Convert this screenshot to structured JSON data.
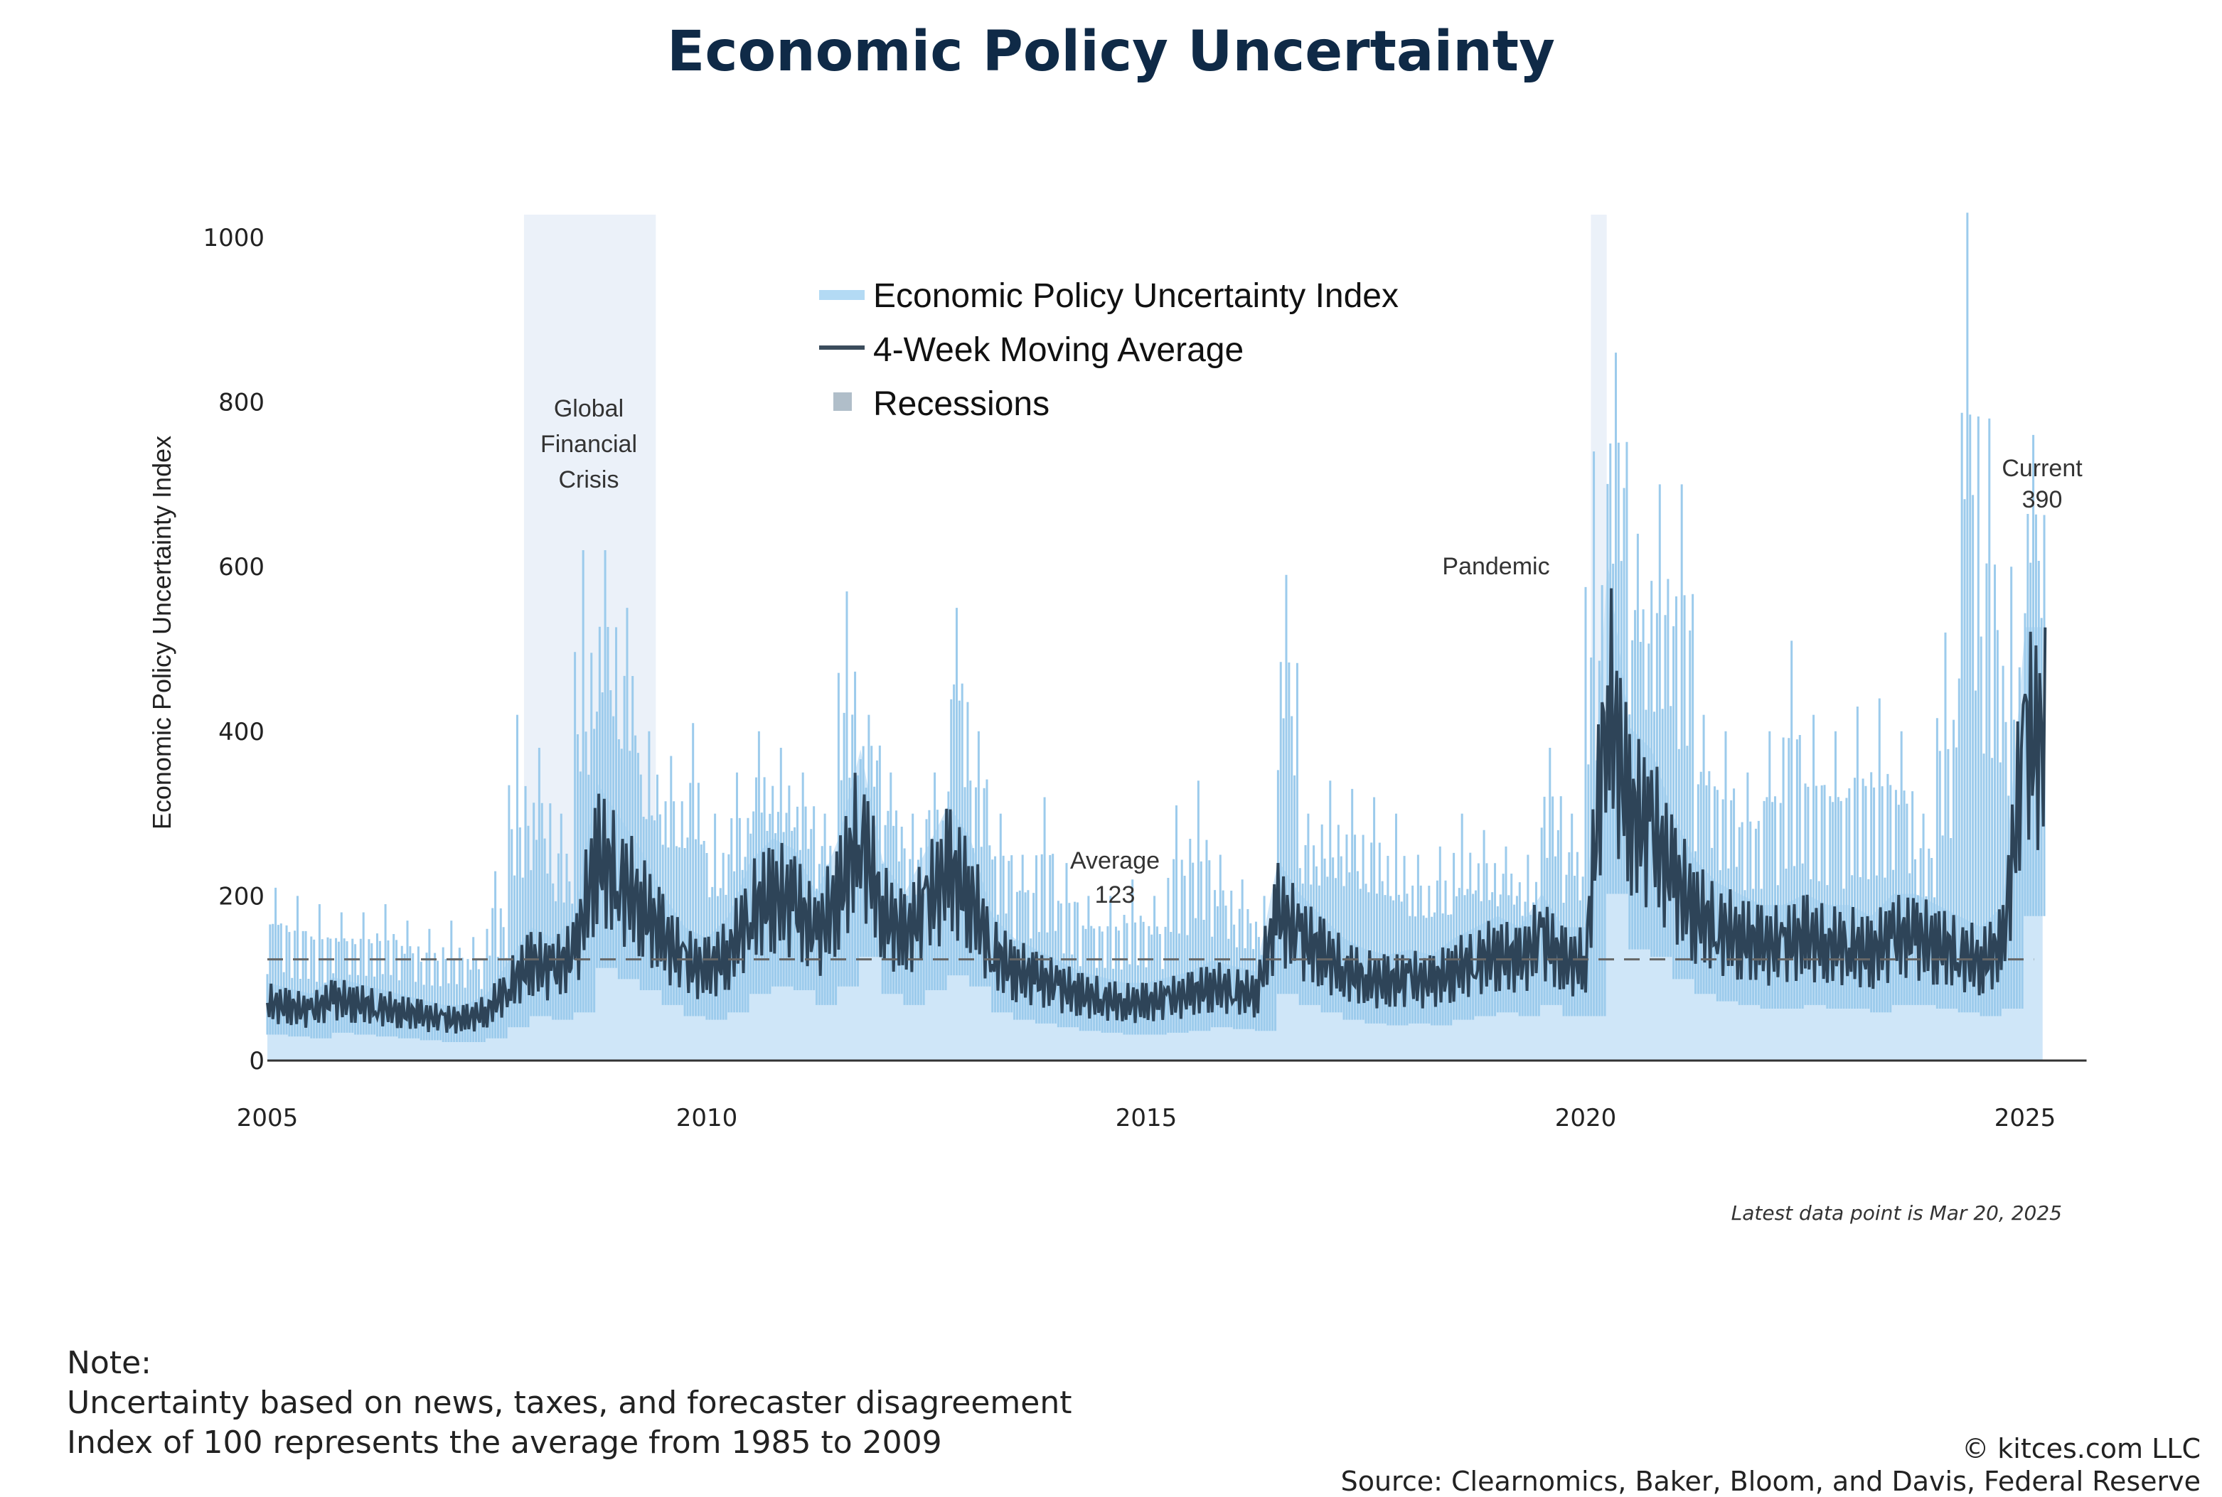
{
  "title": "Economic Policy Uncertainty",
  "chart_data": {
    "type": "line",
    "title": "Economic Policy Uncertainty",
    "ylabel": "Economic Policy Uncertainty Index",
    "xlabel": "",
    "xlim": [
      2005,
      2025.7
    ],
    "ylim": [
      0,
      1000
    ],
    "xticks": [
      2005,
      2010,
      2015,
      2020,
      2025
    ],
    "yticks": [
      0,
      200,
      400,
      600,
      800,
      1000
    ],
    "grid": false,
    "legend_position": "top-center",
    "legend": [
      "Economic Policy Uncertainty Index",
      "4-Week Moving Average",
      "Recessions"
    ],
    "x_start": 2005.0,
    "x_step": 0.25,
    "series": [
      {
        "name": "Economic Policy Uncertainty Index",
        "color": "#9ccbec",
        "fill": "#cfe6f8",
        "values": [
          210,
          200,
          190,
          180,
          180,
          190,
          170,
          160,
          170,
          150,
          230,
          420,
          380,
          300,
          620,
          620,
          550,
          400,
          370,
          410,
          300,
          350,
          400,
          380,
          350,
          300,
          570,
          420,
          350,
          300,
          350,
          550,
          400,
          300,
          250,
          320,
          240,
          200,
          200,
          220,
          200,
          310,
          340,
          250,
          220,
          200,
          590,
          300,
          340,
          330,
          320,
          300,
          250,
          260,
          300,
          280,
          260,
          250,
          380,
          300,
          740,
          860,
          640,
          700,
          700,
          420,
          400,
          350,
          400,
          510,
          420,
          400,
          430,
          440,
          400,
          300,
          520,
          1030,
          780,
          600,
          760
        ]
      },
      {
        "name": "4-Week Moving Average",
        "color": "#2e4458",
        "values": [
          70,
          65,
          60,
          75,
          70,
          65,
          60,
          55,
          50,
          50,
          60,
          90,
          120,
          110,
          130,
          250,
          220,
          190,
          150,
          120,
          110,
          130,
          180,
          200,
          190,
          150,
          200,
          280,
          180,
          150,
          190,
          230,
          200,
          130,
          110,
          100,
          90,
          80,
          75,
          70,
          70,
          75,
          80,
          90,
          85,
          80,
          180,
          150,
          130,
          110,
          100,
          95,
          100,
          95,
          110,
          120,
          130,
          120,
          150,
          120,
          120,
          450,
          300,
          280,
          220,
          180,
          160,
          150,
          140,
          140,
          150,
          140,
          140,
          130,
          150,
          150,
          140,
          130,
          120,
          140,
          390
        ]
      }
    ],
    "recessions": [
      {
        "start": 2007.92,
        "end": 2009.42,
        "label": [
          "Global",
          "Financial",
          "Crisis"
        ]
      },
      {
        "start": 2020.06,
        "end": 2020.24,
        "label": [
          "Pandemic"
        ]
      }
    ],
    "recession_color": "#b0bec9",
    "average": {
      "value": 123,
      "label": "Average",
      "value_label": "123"
    },
    "current": {
      "label": "Current",
      "value_label": "390"
    },
    "latest_note": "Latest data point is Mar 20, 2025"
  },
  "notes": {
    "heading": "Note:",
    "lines": [
      "Uncertainty based on news, taxes, and forecaster disagreement",
      "Index of 100 represents the average from 1985 to 2009"
    ]
  },
  "footer": {
    "copyright": "© kitces.com LLC",
    "source": "Source: Clearnomics, Baker, Bloom, and Davis, Federal Reserve"
  }
}
